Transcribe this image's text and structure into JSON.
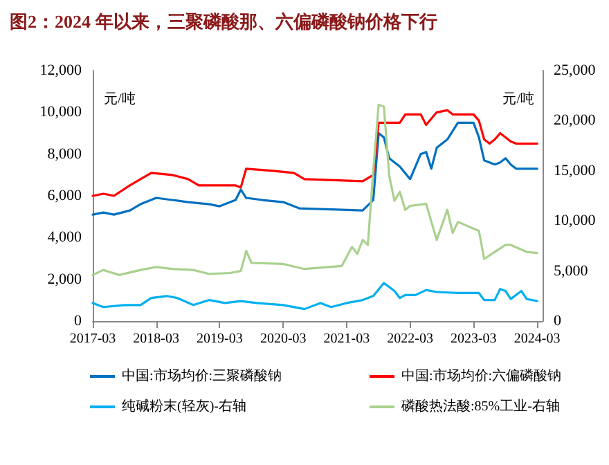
{
  "chart_data": {
    "type": "line",
    "title": "图2：2024 年以来，三聚磷酸那、六偏磷酸钠价格下行",
    "ylabel": "元/吨",
    "y2label": "元/吨",
    "xlim": [
      "2017-03",
      "2024-04"
    ],
    "xticks": [
      "2017-03",
      "2018-03",
      "2019-03",
      "2020-03",
      "2021-03",
      "2022-03",
      "2023-03",
      "2024-03"
    ],
    "ylim": [
      0,
      12000
    ],
    "yticks": [
      0,
      {
        "value": 2000,
        "label": "2,000"
      },
      {
        "value": 4000,
        "label": "4,000"
      },
      {
        "value": 6000,
        "label": "6,000"
      },
      {
        "value": 8000,
        "label": "8,000"
      },
      {
        "value": 10000,
        "label": "10,000"
      },
      {
        "value": 12000,
        "label": "12,000"
      }
    ],
    "y2lim": [
      0,
      25000
    ],
    "y2ticks": [
      0,
      {
        "value": 5000,
        "label": "5,000"
      },
      {
        "value": 10000,
        "label": "10,000"
      },
      {
        "value": 15000,
        "label": "15,000"
      },
      {
        "value": 20000,
        "label": "20,000"
      },
      {
        "value": 25000,
        "label": "25,000"
      }
    ],
    "legend": "bottom",
    "grid": false,
    "marker": "none",
    "line_style": "solid",
    "series": [
      {
        "name": "中国:市场均价:三聚磷酸钠",
        "color": "#0070c0",
        "x": [
          "2017-03",
          "2017-05",
          "2017-07",
          "2017-10",
          "2017-12",
          "2018-03",
          "2018-06",
          "2018-09",
          "2019-01",
          "2019-03",
          "2019-06",
          "2019-07",
          "2019-08",
          "2019-11",
          "2020-03",
          "2020-06",
          "2021-06",
          "2021-08",
          "2021-09",
          "2021-10",
          "2021-11",
          "2022-01",
          "2022-03",
          "2022-05",
          "2022-06",
          "2022-07",
          "2022-08",
          "2022-10",
          "2022-12",
          "2023-03",
          "2023-04",
          "2023-05",
          "2023-07",
          "2023-08",
          "2023-09",
          "2023-10",
          "2023-11",
          "2024-03"
        ],
        "values": [
          5100,
          5200,
          5100,
          5300,
          5600,
          5900,
          5800,
          5700,
          5600,
          5500,
          5800,
          6300,
          5900,
          5800,
          5700,
          5400,
          5300,
          5800,
          9000,
          8800,
          7800,
          7400,
          6800,
          8000,
          8100,
          7300,
          8300,
          8700,
          9500,
          9500,
          8800,
          7700,
          7500,
          7600,
          7800,
          7500,
          7300,
          7300
        ]
      },
      {
        "name": "中国:市场均价:六偏磷酸钠",
        "color": "#ff0000",
        "x": [
          "2017-03",
          "2017-05",
          "2017-07",
          "2017-10",
          "2017-12",
          "2018-02",
          "2018-06",
          "2018-09",
          "2018-11",
          "2019-06",
          "2019-07",
          "2019-08",
          "2020-01",
          "2020-05",
          "2020-07",
          "2021-06",
          "2021-08",
          "2021-09",
          "2022-01",
          "2022-02",
          "2022-05",
          "2022-06",
          "2022-08",
          "2022-10",
          "2022-11",
          "2023-03",
          "2023-04",
          "2023-05",
          "2023-06",
          "2023-07",
          "2023-08",
          "2023-09",
          "2023-10",
          "2023-11",
          "2024-03"
        ],
        "values": [
          6000,
          6100,
          6000,
          6500,
          6800,
          7100,
          7000,
          6800,
          6500,
          6500,
          6400,
          7300,
          7200,
          7100,
          6800,
          6700,
          7000,
          9500,
          9500,
          9900,
          9900,
          9400,
          10000,
          10100,
          9900,
          9900,
          9600,
          8700,
          8500,
          8700,
          9000,
          8800,
          8600,
          8500,
          8500
        ]
      },
      {
        "name": "纯碱粉末(轻灰)-右轴",
        "color": "#00b0f0",
        "axis": "y2",
        "x": [
          "2017-03",
          "2017-05",
          "2017-09",
          "2017-12",
          "2018-02",
          "2018-05",
          "2018-07",
          "2018-10",
          "2019-01",
          "2019-04",
          "2019-07",
          "2019-10",
          "2020-03",
          "2020-07",
          "2020-10",
          "2020-12",
          "2021-03",
          "2021-06",
          "2021-08",
          "2021-10",
          "2021-12",
          "2022-01",
          "2022-02",
          "2022-04",
          "2022-06",
          "2022-08",
          "2022-12",
          "2023-04",
          "2023-05",
          "2023-07",
          "2023-08",
          "2023-09",
          "2023-10",
          "2023-12",
          "2024-01",
          "2024-03"
        ],
        "values": [
          1800,
          1400,
          1600,
          1600,
          2300,
          2500,
          2300,
          1600,
          2100,
          1800,
          2000,
          1800,
          1600,
          1200,
          1800,
          1400,
          1800,
          2100,
          2500,
          3800,
          3000,
          2300,
          2600,
          2600,
          3100,
          2900,
          2800,
          2800,
          2100,
          2100,
          3200,
          3000,
          2200,
          3000,
          2200,
          2000
        ]
      },
      {
        "name": "磷酸热法酸:85%工业-右轴",
        "color": "#a9d18e",
        "axis": "y2",
        "x": [
          "2017-03",
          "2017-05",
          "2017-08",
          "2017-12",
          "2018-03",
          "2018-06",
          "2018-10",
          "2019-01",
          "2019-05",
          "2019-07",
          "2019-08",
          "2019-09",
          "2020-03",
          "2020-07",
          "2021-02",
          "2021-04",
          "2021-05",
          "2021-06",
          "2021-07",
          "2021-08",
          "2021-09",
          "2021-10",
          "2021-11",
          "2021-12",
          "2022-01",
          "2022-02",
          "2022-03",
          "2022-06",
          "2022-08",
          "2022-10",
          "2022-11",
          "2022-12",
          "2023-04",
          "2023-05",
          "2023-07",
          "2023-09",
          "2023-10",
          "2024-01",
          "2024-03"
        ],
        "values": [
          4600,
          5100,
          4600,
          5100,
          5400,
          5200,
          5100,
          4700,
          4800,
          5000,
          7000,
          5800,
          5700,
          5200,
          5500,
          7400,
          6700,
          8100,
          7600,
          15000,
          21600,
          21400,
          14500,
          12000,
          12900,
          11100,
          11500,
          11700,
          8100,
          11100,
          8800,
          9900,
          9000,
          6200,
          6900,
          7600,
          7600,
          6900,
          6800
        ]
      }
    ]
  }
}
